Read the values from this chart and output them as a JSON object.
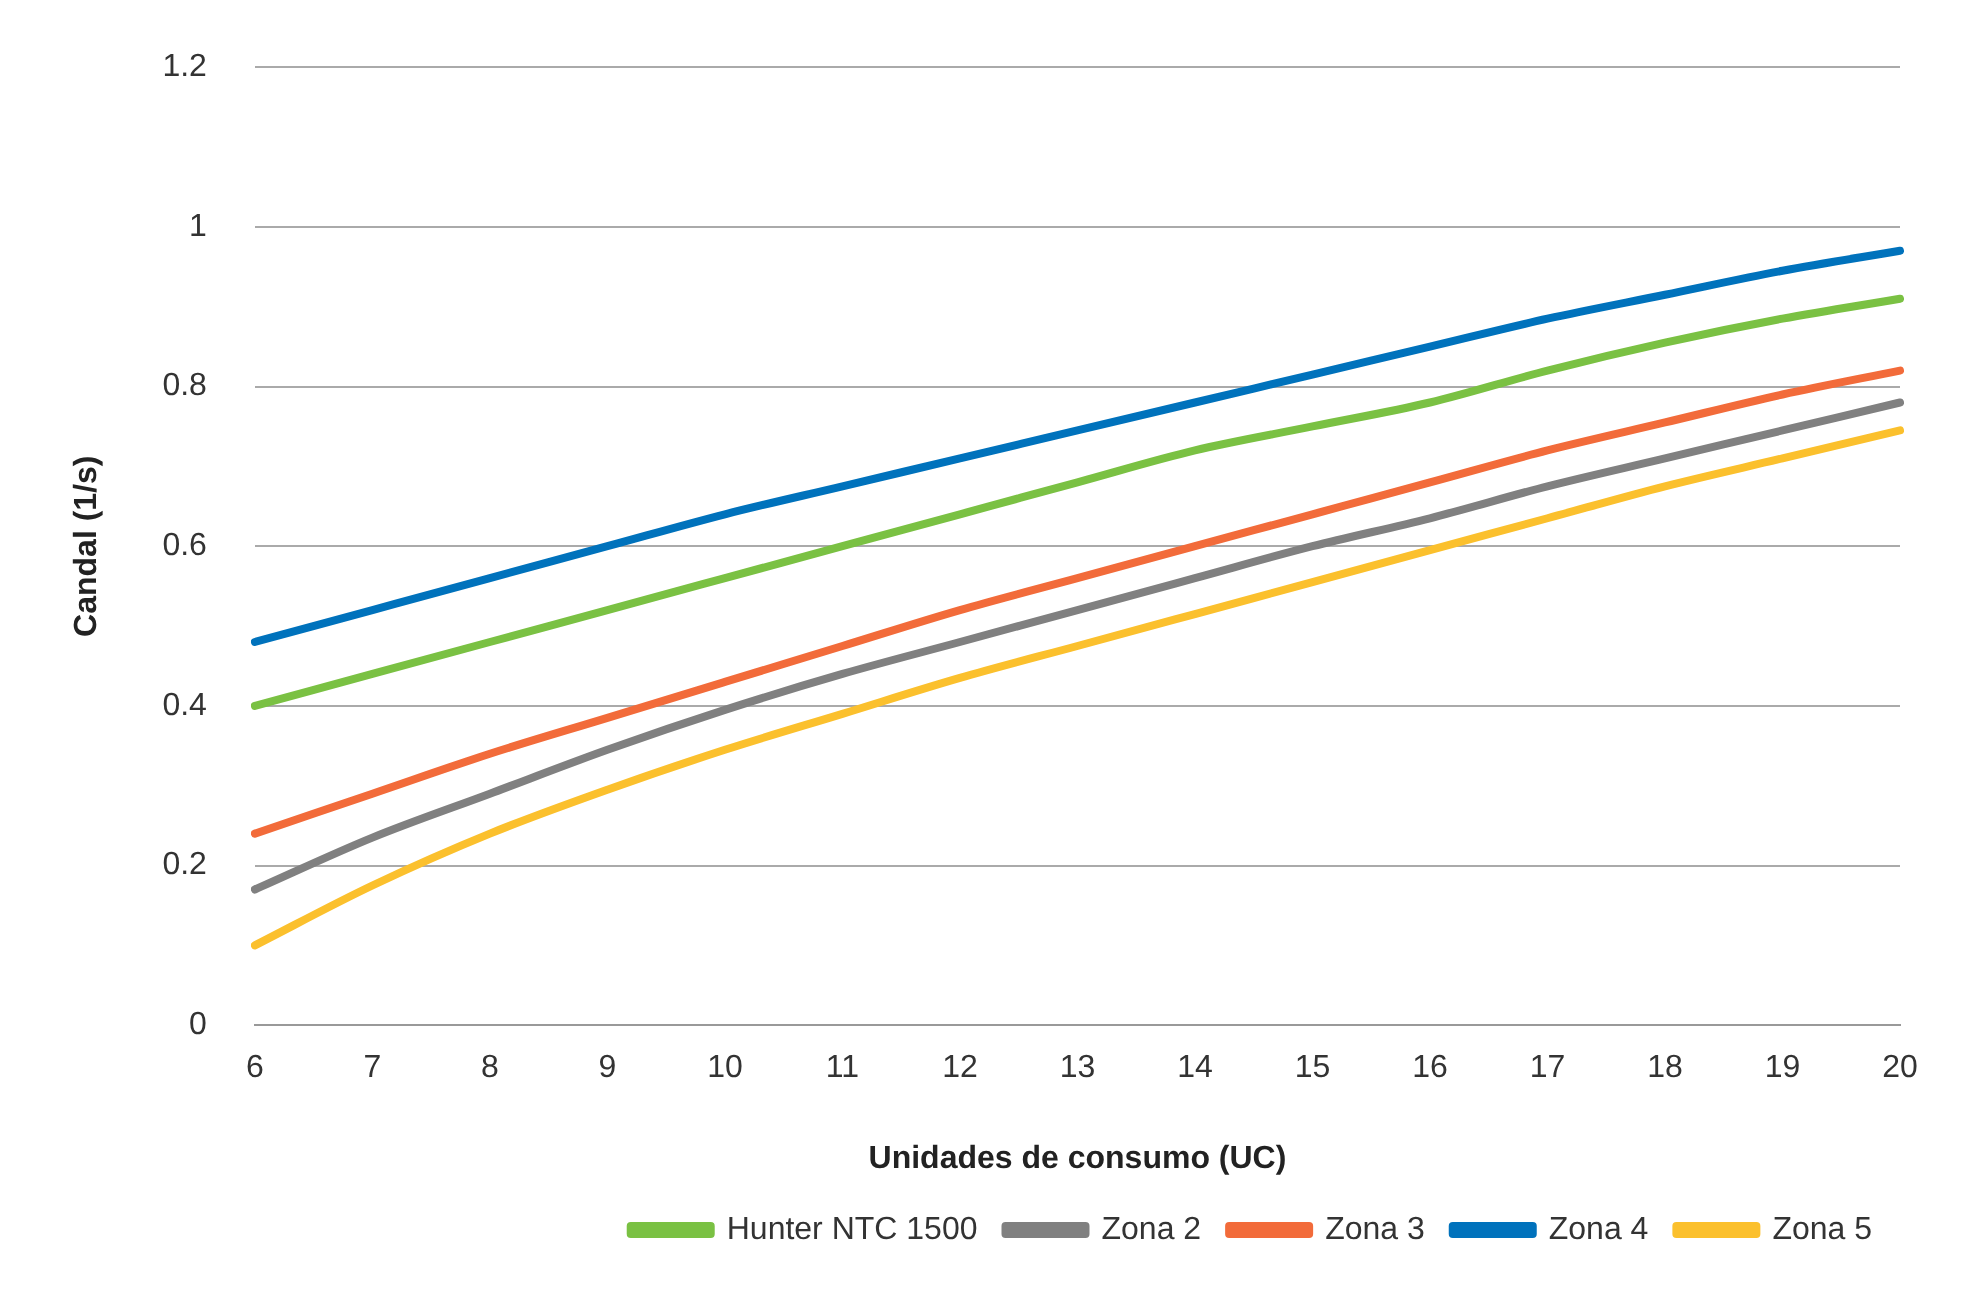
{
  "chart_data": {
    "type": "line",
    "xlabel": "Unidades de consumo (UC)",
    "ylabel": "Candal (1/s)",
    "categories": [
      "6",
      "7",
      "8",
      "9",
      "10",
      "11",
      "12",
      "13",
      "14",
      "15",
      "16",
      "17",
      "18",
      "19",
      "20"
    ],
    "series": [
      {
        "name": "Hunter NTC 1500",
        "color": "#7ac143",
        "values": [
          0.4,
          0.44,
          0.48,
          0.52,
          0.56,
          0.6,
          0.64,
          0.68,
          0.72,
          0.75,
          0.78,
          0.82,
          0.855,
          0.885,
          0.91
        ]
      },
      {
        "name": "Zona 2",
        "color": "#808080",
        "values": [
          0.17,
          0.235,
          0.29,
          0.345,
          0.395,
          0.44,
          0.48,
          0.52,
          0.56,
          0.6,
          0.635,
          0.675,
          0.71,
          0.745,
          0.78
        ]
      },
      {
        "name": "Zona 3",
        "color": "#f26b3a",
        "values": [
          0.24,
          0.29,
          0.34,
          0.385,
          0.43,
          0.475,
          0.52,
          0.56,
          0.6,
          0.64,
          0.68,
          0.72,
          0.755,
          0.79,
          0.82
        ]
      },
      {
        "name": "Zona 4",
        "color": "#0072bc",
        "values": [
          0.48,
          0.52,
          0.56,
          0.6,
          0.64,
          0.675,
          0.71,
          0.745,
          0.78,
          0.815,
          0.85,
          0.885,
          0.915,
          0.945,
          0.97
        ]
      },
      {
        "name": "Zona 5",
        "color": "#fbc02d",
        "values": [
          0.1,
          0.175,
          0.24,
          0.295,
          0.345,
          0.39,
          0.435,
          0.475,
          0.515,
          0.555,
          0.595,
          0.635,
          0.675,
          0.71,
          0.745
        ]
      }
    ],
    "ylim": [
      0,
      1.2
    ],
    "yticks": [
      0,
      0.2,
      0.4,
      0.6,
      0.8,
      1,
      1.2
    ],
    "grid": "y",
    "legend": "bottom",
    "marker": "none",
    "line_style": "solid"
  }
}
